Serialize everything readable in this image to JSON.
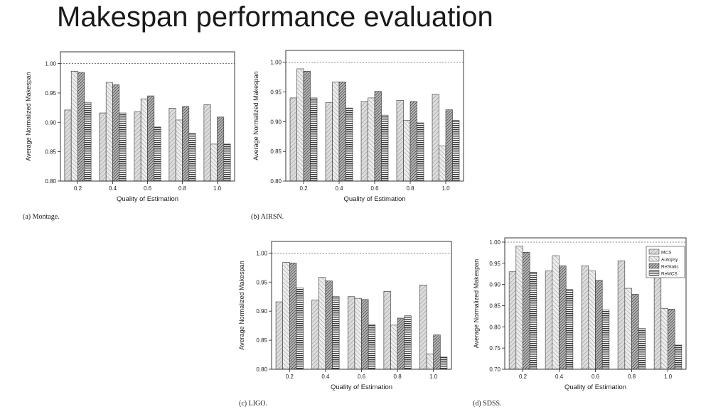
{
  "slide": {
    "title": "Makespan performance evaluation"
  },
  "series_names": [
    "MCS",
    "Autopsy",
    "ReStatic",
    "ReMCS"
  ],
  "chart_data": [
    {
      "type": "bar",
      "caption": "(a) Montage.",
      "xlabel": "Quality of Estimation",
      "ylabel": "Average Normalized Makespan",
      "categories": [
        "0.2",
        "0.4",
        "0.6",
        "0.8",
        "1.0"
      ],
      "ylim": [
        0.8,
        1.02
      ],
      "yticks": [
        "0.80",
        "0.85",
        "0.90",
        "0.95",
        "1.00"
      ],
      "reference_line": 1.0,
      "legend": false,
      "series": [
        {
          "values": [
            0.921,
            0.916,
            0.918,
            0.924,
            0.93
          ]
        },
        {
          "values": [
            0.987,
            0.968,
            0.94,
            0.904,
            0.863
          ]
        },
        {
          "values": [
            0.985,
            0.964,
            0.945,
            0.927,
            0.909
          ]
        },
        {
          "values": [
            0.934,
            0.916,
            0.892,
            0.881,
            0.863
          ]
        }
      ]
    },
    {
      "type": "bar",
      "caption": "(b) AIRSN.",
      "xlabel": "Quality of Estimation",
      "ylabel": "Average Normalized Makespan",
      "categories": [
        "0.2",
        "0.4",
        "0.6",
        "0.8",
        "1.0"
      ],
      "ylim": [
        0.8,
        1.02
      ],
      "yticks": [
        "0.80",
        "0.85",
        "0.90",
        "0.95",
        "1.00"
      ],
      "reference_line": 1.0,
      "legend": false,
      "series": [
        {
          "values": [
            0.94,
            0.932,
            0.934,
            0.936,
            0.946
          ]
        },
        {
          "values": [
            0.989,
            0.967,
            0.94,
            0.902,
            0.859
          ]
        },
        {
          "values": [
            0.985,
            0.967,
            0.951,
            0.934,
            0.92
          ]
        },
        {
          "values": [
            0.94,
            0.923,
            0.911,
            0.898,
            0.902
          ]
        }
      ]
    },
    {
      "type": "bar",
      "caption": "(c) LIGO.",
      "xlabel": "Quality of Estimation",
      "ylabel": "Average Normalized Makespan",
      "categories": [
        "0.2",
        "0.4",
        "0.6",
        "0.8",
        "1.0"
      ],
      "ylim": [
        0.8,
        1.02
      ],
      "yticks": [
        "0.80",
        "0.85",
        "0.90",
        "0.95",
        "1.00"
      ],
      "reference_line": 1.0,
      "legend": false,
      "series": [
        {
          "values": [
            0.916,
            0.919,
            0.925,
            0.934,
            0.945
          ]
        },
        {
          "values": [
            0.984,
            0.958,
            0.922,
            0.876,
            0.826
          ]
        },
        {
          "values": [
            0.983,
            0.952,
            0.92,
            0.888,
            0.859
          ]
        },
        {
          "values": [
            0.94,
            0.925,
            0.877,
            0.892,
            0.821
          ]
        }
      ]
    },
    {
      "type": "bar",
      "caption": "(d) SDSS.",
      "xlabel": "Quality of Estimation",
      "ylabel": "Average Normalized Makespan",
      "categories": [
        "0.2",
        "0.4",
        "0.6",
        "0.8",
        "1.0"
      ],
      "ylim": [
        0.7,
        1.01
      ],
      "yticks": [
        "0.70",
        "0.75",
        "0.80",
        "0.85",
        "0.90",
        "0.95",
        "1.00"
      ],
      "reference_line": 1.0,
      "legend": true,
      "legend_position": "top-right",
      "series": [
        {
          "name": "MCS",
          "values": [
            0.93,
            0.932,
            0.944,
            0.956,
            0.97
          ]
        },
        {
          "name": "Autopsy",
          "values": [
            0.991,
            0.968,
            0.932,
            0.891,
            0.843
          ]
        },
        {
          "name": "ReStatic",
          "values": [
            0.976,
            0.944,
            0.91,
            0.877,
            0.842
          ]
        },
        {
          "name": "ReMCS",
          "values": [
            0.929,
            0.888,
            0.84,
            0.796,
            0.757
          ]
        }
      ]
    }
  ]
}
